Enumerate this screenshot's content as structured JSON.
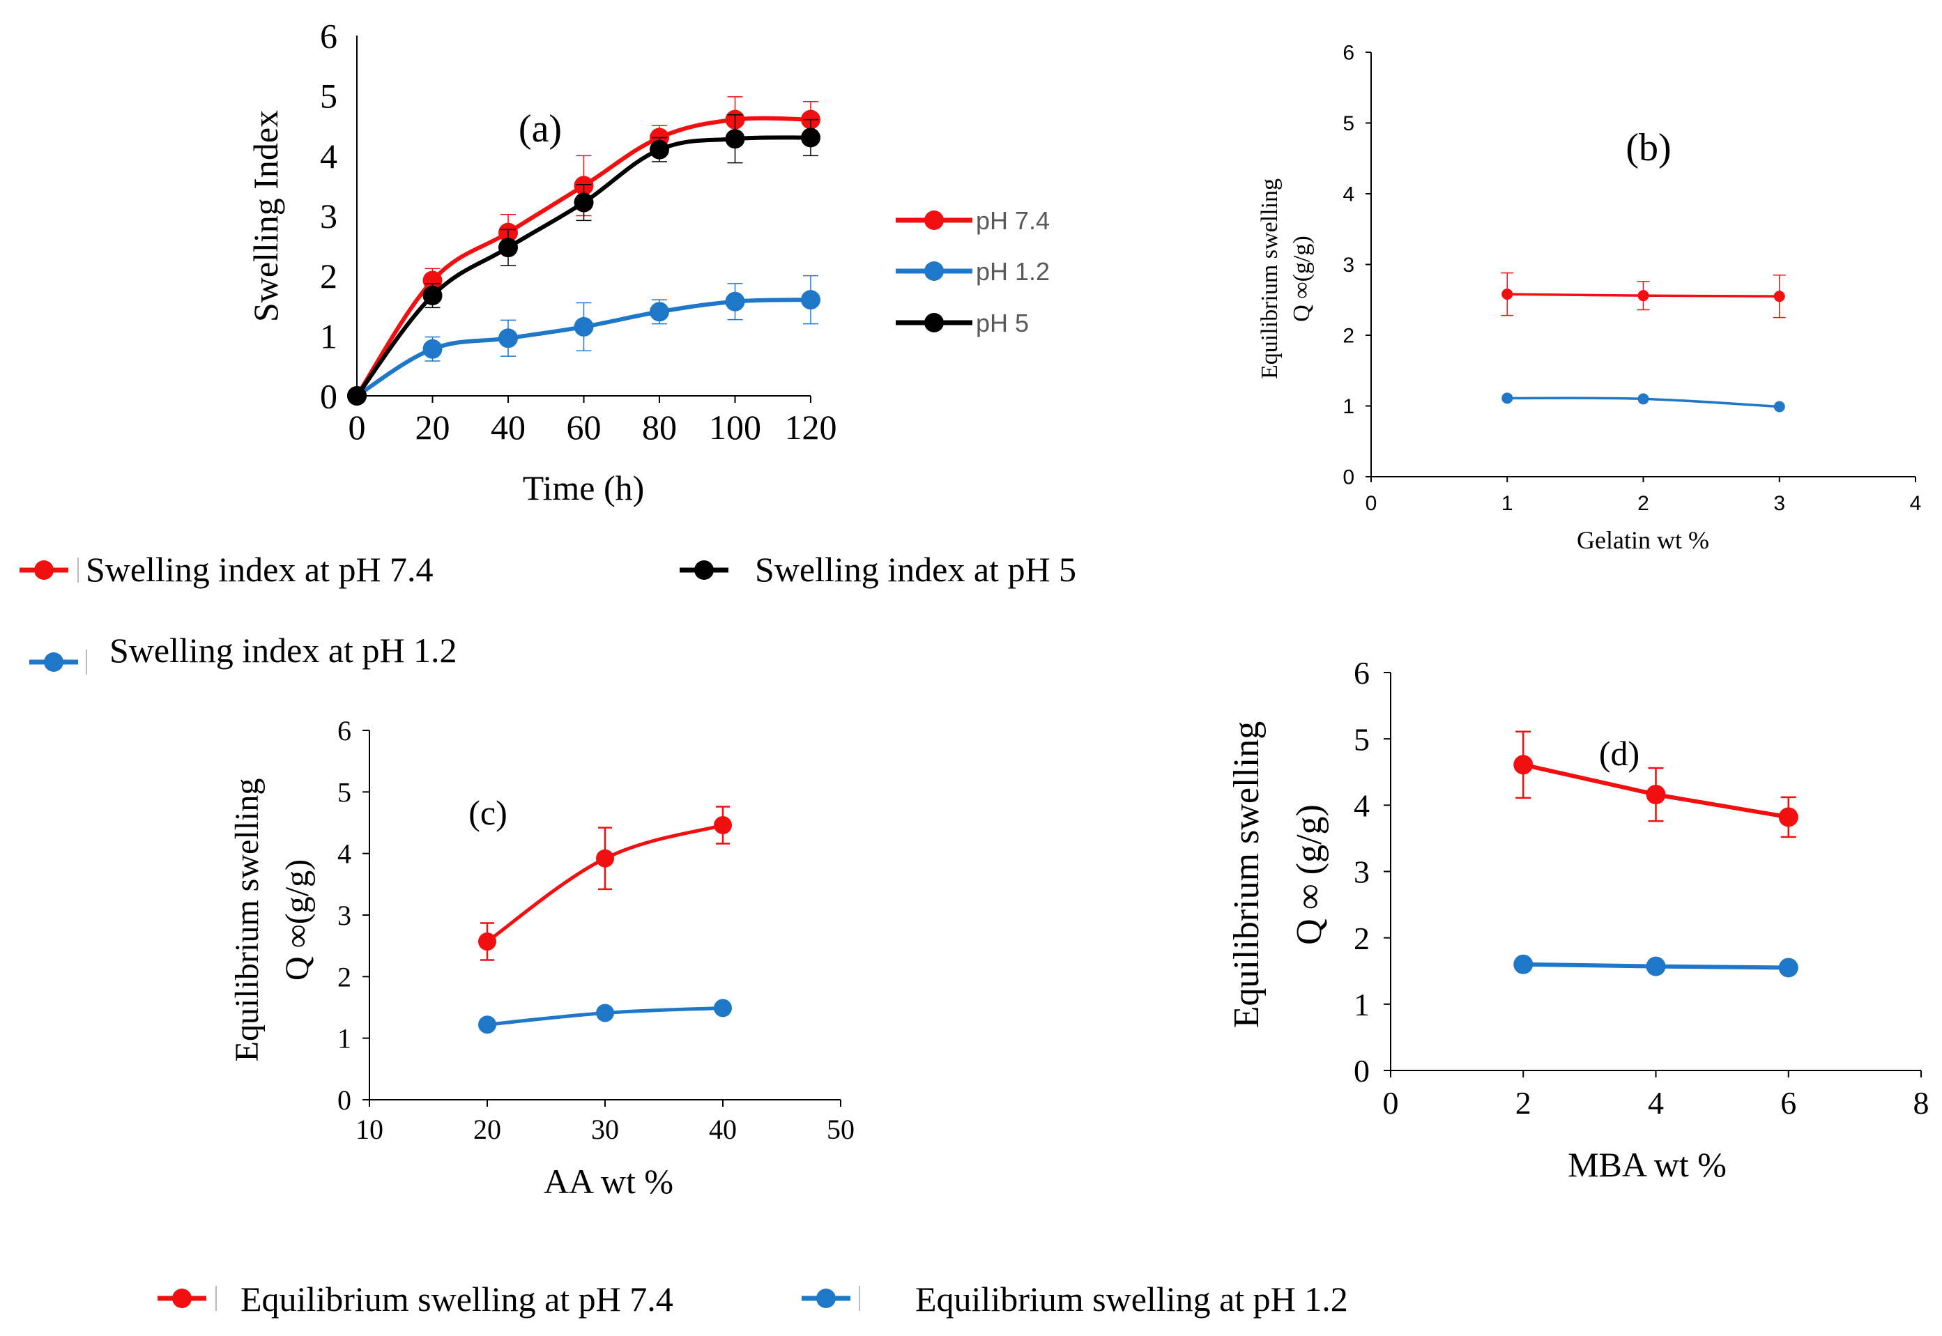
{
  "colors": {
    "red": "#f20f0f",
    "blue": "#1f77c8",
    "black": "#000000",
    "axis": "#000000"
  },
  "chart_data": [
    {
      "id": "a",
      "type": "line",
      "panel_label": "(a)",
      "xlabel": "Time (h)",
      "ylabel": "Swelling Index",
      "xlim": [
        0,
        120
      ],
      "ylim": [
        0,
        6
      ],
      "xticks": [
        "0",
        "20",
        "40",
        "60",
        "80",
        "100",
        "120"
      ],
      "yticks": [
        "0",
        "1",
        "2",
        "3",
        "4",
        "5",
        "6"
      ],
      "legend": [
        "pH 7.4",
        "pH 1.2",
        "pH 5"
      ],
      "series": [
        {
          "name": "pH 7.4",
          "color": "#f20f0f",
          "x": [
            0,
            20,
            40,
            60,
            80,
            100,
            120
          ],
          "y": [
            0,
            1.92,
            2.72,
            3.5,
            4.3,
            4.6,
            4.6
          ],
          "err": [
            0,
            0.2,
            0.3,
            0.5,
            0.2,
            0.38,
            0.3
          ]
        },
        {
          "name": "pH 1.2",
          "color": "#1f77c8",
          "x": [
            0,
            20,
            40,
            60,
            80,
            100,
            120
          ],
          "y": [
            0,
            0.78,
            0.96,
            1.15,
            1.4,
            1.57,
            1.6
          ],
          "err": [
            0,
            0.2,
            0.3,
            0.4,
            0.2,
            0.3,
            0.4
          ]
        },
        {
          "name": "pH 5",
          "color": "#000000",
          "x": [
            0,
            20,
            40,
            60,
            80,
            100,
            120
          ],
          "y": [
            0,
            1.67,
            2.47,
            3.22,
            4.1,
            4.28,
            4.3
          ],
          "err": [
            0,
            0.2,
            0.3,
            0.3,
            0.2,
            0.4,
            0.3
          ]
        }
      ]
    },
    {
      "id": "b",
      "type": "line",
      "panel_label": "(b)",
      "xlabel": "Gelatin wt %",
      "ylabel_line1": "Equilibrium swelling",
      "ylabel_line2": "Q ∞(g/g)",
      "xlim": [
        0,
        4
      ],
      "ylim": [
        0,
        6
      ],
      "xticks": [
        "0",
        "1",
        "2",
        "3",
        "4"
      ],
      "yticks": [
        "0",
        "1",
        "2",
        "3",
        "4",
        "5",
        "6"
      ],
      "series": [
        {
          "name": "pH 7.4",
          "color": "#f20f0f",
          "x": [
            1,
            2,
            3
          ],
          "y": [
            2.58,
            2.56,
            2.55
          ],
          "err": [
            0.3,
            0.2,
            0.3
          ]
        },
        {
          "name": "pH 1.2",
          "color": "#1f77c8",
          "x": [
            1,
            2,
            3
          ],
          "y": [
            1.11,
            1.1,
            0.99
          ],
          "err": [
            0,
            0,
            0
          ]
        }
      ]
    },
    {
      "id": "c",
      "type": "line",
      "panel_label": "(c)",
      "xlabel": "AA wt %",
      "ylabel_line1": "Equilibrium swelling",
      "ylabel_line2": "Q ∞(g/g)",
      "xlim": [
        10,
        50
      ],
      "ylim": [
        0,
        6
      ],
      "xticks": [
        "10",
        "20",
        "30",
        "40",
        "50"
      ],
      "yticks": [
        "0",
        "1",
        "2",
        "3",
        "4",
        "5",
        "6"
      ],
      "series": [
        {
          "name": "pH 7.4",
          "color": "#f20f0f",
          "x": [
            20,
            30,
            40
          ],
          "y": [
            2.57,
            3.92,
            4.46
          ],
          "err": [
            0.3,
            0.5,
            0.3
          ]
        },
        {
          "name": "pH 1.2",
          "color": "#1f77c8",
          "x": [
            20,
            30,
            40
          ],
          "y": [
            1.22,
            1.41,
            1.49
          ],
          "err": [
            0,
            0,
            0
          ]
        }
      ]
    },
    {
      "id": "d",
      "type": "line",
      "panel_label": "(d)",
      "xlabel": "MBA wt %",
      "ylabel_line1": "Equilibrium swelling",
      "ylabel_line2": "Q ∞ (g/g)",
      "xlim": [
        0,
        8
      ],
      "ylim": [
        0,
        6
      ],
      "xticks": [
        "0",
        "2",
        "4",
        "6",
        "8"
      ],
      "yticks": [
        "0",
        "1",
        "2",
        "3",
        "4",
        "5",
        "6"
      ],
      "series": [
        {
          "name": "pH 7.4",
          "color": "#f20f0f",
          "x": [
            2,
            4,
            6
          ],
          "y": [
            4.61,
            4.16,
            3.82
          ],
          "err": [
            0.5,
            0.4,
            0.3
          ]
        },
        {
          "name": "pH 1.2",
          "color": "#1f77c8",
          "x": [
            2,
            4,
            6
          ],
          "y": [
            1.6,
            1.57,
            1.55
          ],
          "err": [
            0,
            0,
            0
          ]
        }
      ]
    }
  ],
  "legends": {
    "top": [
      {
        "label": "Swelling index at pH 7.4",
        "color": "#f20f0f"
      },
      {
        "label": "Swelling index at pH 5",
        "color": "#000000"
      },
      {
        "label": "Swelling index at pH 1.2",
        "color": "#1f77c8"
      }
    ],
    "bottom": [
      {
        "label": "Equilibrium swelling at pH 7.4",
        "color": "#f20f0f"
      },
      {
        "label": "Equilibrium swelling at pH 1.2",
        "color": "#1f77c8"
      }
    ]
  }
}
